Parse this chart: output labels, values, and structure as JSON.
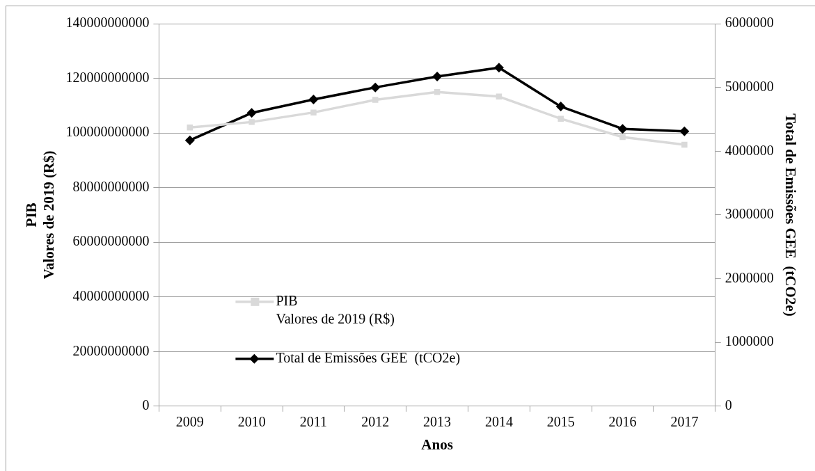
{
  "chart_data": {
    "type": "line",
    "xlabel": "Anos",
    "ylabel": "PIB\nValores de 2019 (R$)",
    "y2label": "Total de Emissões GEE  (tCO2e)",
    "categories": [
      "2009",
      "2010",
      "2011",
      "2012",
      "2013",
      "2014",
      "2015",
      "2016",
      "2017"
    ],
    "series": [
      {
        "name": "PIB\nValores de 2019 (R$)",
        "color": "#d9d9d9",
        "marker": "square",
        "values": [
          102000000000,
          104000000000,
          107500000000,
          112100000000,
          115000000000,
          113300000000,
          105200000000,
          98500000000,
          95700000000
        ]
      },
      {
        "name": "Total de Emissões GEE  (tCO2e)",
        "color": "#000000",
        "marker": "diamond",
        "axis": "y2",
        "values": [
          4170000,
          4600000,
          4810000,
          5000000,
          5170000,
          5310000,
          4700000,
          4350000,
          4310000
        ]
      }
    ],
    "ylim": [
      0,
      140000000000
    ],
    "yticks": [
      0,
      20000000000,
      40000000000,
      60000000000,
      80000000000,
      100000000000,
      120000000000,
      140000000000
    ],
    "y2lim": [
      0,
      6000000
    ],
    "y2ticks": [
      0,
      1000000,
      2000000,
      3000000,
      4000000,
      5000000,
      6000000
    ],
    "grid": "y",
    "legend": "bottom left",
    "line_style": "solid"
  }
}
